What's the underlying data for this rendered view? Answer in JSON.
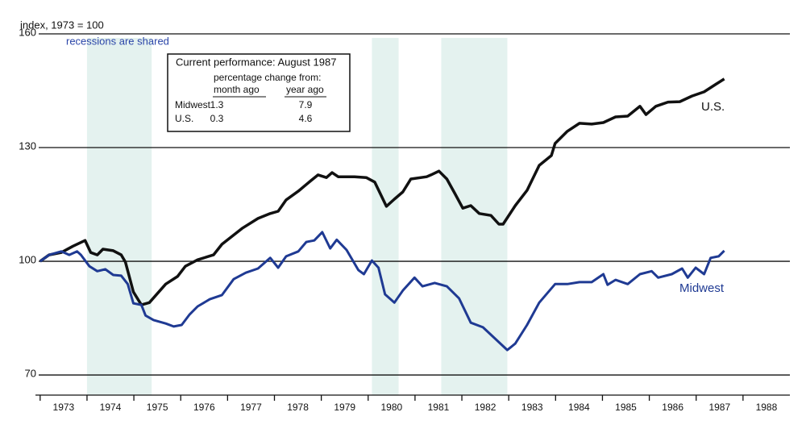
{
  "chart_data": {
    "type": "line",
    "y_label": "index, 1973 = 100",
    "annotation": "recessions are shared",
    "xlim": [
      1972.9,
      1989
    ],
    "xticks": [
      1973,
      1974,
      1975,
      1976,
      1977,
      1978,
      1979,
      1980,
      1981,
      1982,
      1983,
      1984,
      1985,
      1986,
      1987,
      1988
    ],
    "ylim": [
      64.7,
      160
    ],
    "yticks": [
      70,
      100,
      130,
      160
    ],
    "grid": true,
    "recession_color": "#e4f2ef",
    "recessions": [
      {
        "start": 1974.0,
        "end": 1975.38
      },
      {
        "start": 1980.08,
        "end": 1980.65
      },
      {
        "start": 1981.56,
        "end": 1982.97
      }
    ],
    "series": [
      {
        "name": "U.S.",
        "color": "#111111",
        "x": [
          1973.0,
          1973.19,
          1973.45,
          1973.7,
          1973.96,
          1974.08,
          1974.22,
          1974.34,
          1974.56,
          1974.73,
          1974.82,
          1974.99,
          1975.16,
          1975.33,
          1975.68,
          1975.93,
          1976.1,
          1976.36,
          1976.7,
          1976.88,
          1977.31,
          1977.65,
          1977.91,
          1978.08,
          1978.25,
          1978.51,
          1978.76,
          1978.93,
          1979.11,
          1979.23,
          1979.36,
          1979.71,
          1979.96,
          1980.14,
          1980.39,
          1980.56,
          1980.74,
          1980.91,
          1981.25,
          1981.34,
          1981.51,
          1981.68,
          1981.85,
          1982.02,
          1982.19,
          1982.37,
          1982.62,
          1982.79,
          1982.88,
          1983.14,
          1983.39,
          1983.65,
          1983.91,
          1983.99,
          1984.25,
          1984.51,
          1984.77,
          1985.02,
          1985.28,
          1985.54,
          1985.8,
          1985.93,
          1986.14,
          1986.4,
          1986.65,
          1986.91,
          1987.17,
          1987.43,
          1987.6
        ],
        "values": [
          100,
          101.7,
          102.3,
          104.0,
          105.5,
          102.3,
          101.7,
          103.2,
          102.8,
          101.7,
          99.8,
          91.9,
          88.5,
          89.1,
          94.0,
          96.0,
          98.7,
          100.4,
          101.7,
          104.5,
          108.7,
          111.3,
          112.6,
          113.2,
          116.2,
          118.5,
          121.1,
          122.8,
          122.1,
          123.4,
          122.3,
          122.3,
          122.1,
          120.9,
          114.5,
          116.4,
          118.3,
          121.7,
          122.3,
          122.8,
          123.8,
          121.7,
          117.9,
          114.0,
          114.7,
          112.6,
          112.1,
          109.8,
          109.8,
          114.7,
          118.7,
          125.3,
          127.9,
          131.1,
          134.3,
          136.4,
          136.2,
          136.6,
          138.1,
          138.3,
          140.9,
          138.7,
          140.9,
          142.0,
          142.1,
          143.6,
          144.7,
          146.8,
          148.1
        ]
      },
      {
        "name": "Midwest",
        "color": "#1f3a93",
        "x": [
          1973.0,
          1973.19,
          1973.45,
          1973.62,
          1973.79,
          1973.87,
          1974.05,
          1974.22,
          1974.39,
          1974.56,
          1974.73,
          1974.87,
          1974.99,
          1975.16,
          1975.25,
          1975.42,
          1975.68,
          1975.85,
          1976.02,
          1976.19,
          1976.36,
          1976.62,
          1976.88,
          1977.13,
          1977.39,
          1977.65,
          1977.91,
          1978.08,
          1978.25,
          1978.51,
          1978.68,
          1978.85,
          1979.02,
          1979.19,
          1979.33,
          1979.54,
          1979.79,
          1979.91,
          1980.08,
          1980.22,
          1980.36,
          1980.56,
          1980.74,
          1980.99,
          1981.16,
          1981.42,
          1981.68,
          1981.94,
          1982.19,
          1982.45,
          1982.71,
          1982.97,
          1983.14,
          1983.39,
          1983.65,
          1983.99,
          1984.25,
          1984.51,
          1984.77,
          1985.02,
          1985.11,
          1985.28,
          1985.54,
          1985.8,
          1986.05,
          1986.19,
          1986.48,
          1986.7,
          1986.82,
          1986.99,
          1987.17,
          1987.31,
          1987.48,
          1987.6
        ],
        "values": [
          100,
          101.7,
          102.6,
          101.7,
          102.6,
          101.7,
          98.7,
          97.4,
          97.9,
          96.4,
          96.2,
          94.0,
          88.9,
          88.5,
          85.7,
          84.5,
          83.6,
          82.8,
          83.2,
          86.0,
          88.1,
          90.0,
          91.1,
          95.3,
          97.0,
          98.1,
          100.9,
          98.3,
          101.3,
          102.6,
          105.1,
          105.5,
          107.7,
          103.4,
          105.7,
          103.0,
          97.7,
          96.6,
          100.2,
          98.3,
          91.3,
          89.1,
          92.3,
          95.7,
          93.4,
          94.3,
          93.4,
          90.2,
          83.8,
          82.6,
          79.6,
          76.6,
          78.3,
          83.2,
          89.1,
          94.0,
          94.0,
          94.5,
          94.5,
          96.6,
          93.8,
          95.1,
          94.0,
          96.6,
          97.4,
          95.7,
          96.6,
          98.1,
          95.7,
          98.3,
          96.6,
          100.9,
          101.3,
          102.8
        ]
      }
    ],
    "table": {
      "title": "Current performance: August 1987",
      "subtitle": "percentage change from:",
      "columns": [
        "month ago",
        "year ago"
      ],
      "rows": [
        {
          "name": "Midwest",
          "values": [
            1.3,
            7.9
          ]
        },
        {
          "name": "U.S.",
          "values": [
            0.3,
            4.6
          ]
        }
      ]
    }
  }
}
